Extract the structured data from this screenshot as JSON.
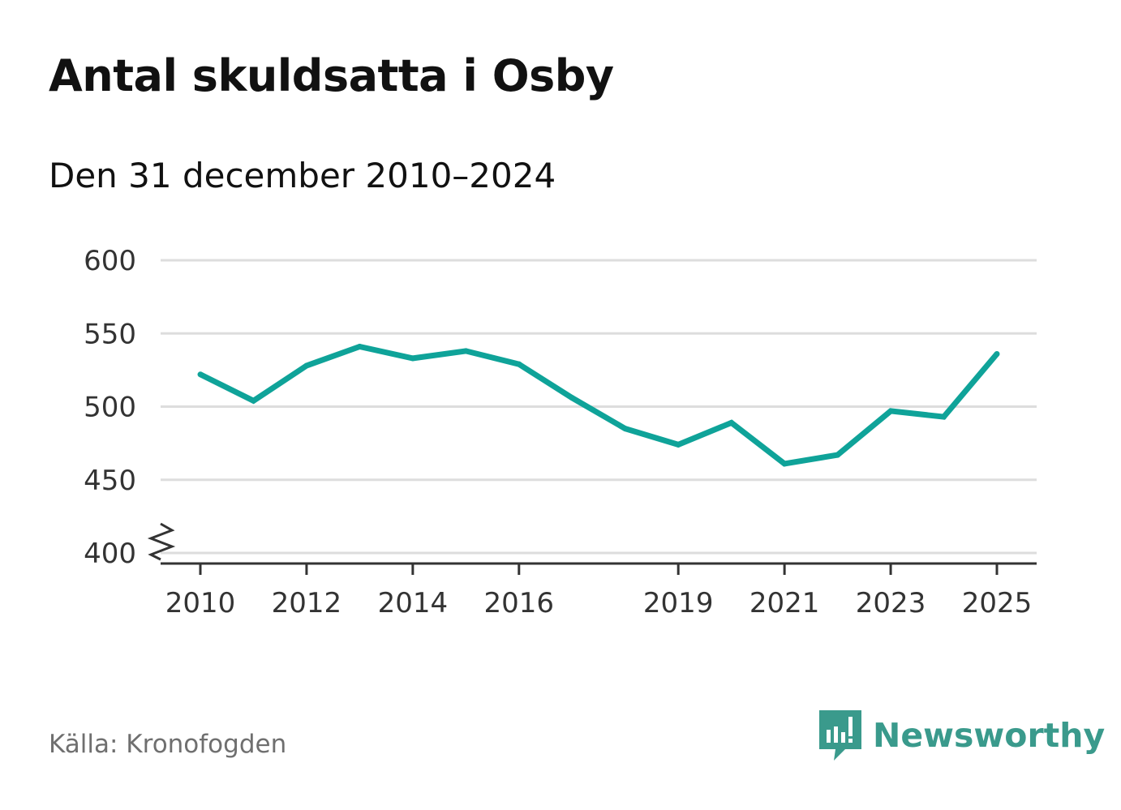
{
  "header": {
    "title": "Antal skuldsatta i Osby",
    "subtitle": "Den 31 december 2010–2024"
  },
  "footer": {
    "source": "Källa: Kronofogden",
    "brand": "Newsworthy"
  },
  "colors": {
    "line": "#0fa399",
    "grid": "#dddddd",
    "axis": "#333333",
    "brand": "#3a9a8c"
  },
  "chart_data": {
    "type": "line",
    "title": "Antal skuldsatta i Osby",
    "xlabel": "",
    "ylabel": "",
    "xlim": [
      2010,
      2025
    ],
    "ylim": [
      400,
      600
    ],
    "y_axis_broken": true,
    "grid": true,
    "x_ticks": [
      2010,
      2012,
      2014,
      2016,
      2019,
      2021,
      2023,
      2025
    ],
    "y_ticks": [
      400,
      450,
      500,
      550,
      600
    ],
    "series": [
      {
        "name": "Antal skuldsatta",
        "x": [
          2010,
          2011,
          2012,
          2013,
          2014,
          2015,
          2016,
          2017,
          2018,
          2019,
          2020,
          2021,
          2022,
          2023,
          2024,
          2025
        ],
        "values": [
          522,
          504,
          528,
          541,
          533,
          538,
          529,
          506,
          485,
          474,
          489,
          461,
          467,
          497,
          493,
          536
        ]
      }
    ]
  }
}
